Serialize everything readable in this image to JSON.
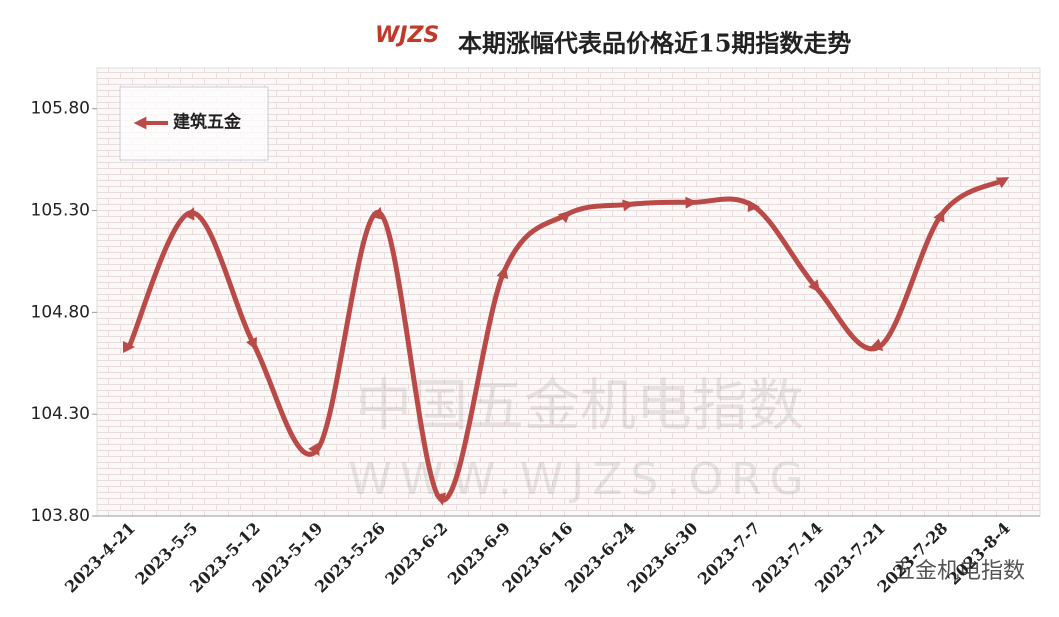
{
  "chart_data": {
    "type": "line",
    "title": "本期涨幅代表品价格近15期指数走势",
    "logo": "WJZS",
    "watermark": [
      "中国五金机电指数",
      "WWW.WJZS.ORG"
    ],
    "source": "五金机电指数",
    "categories": [
      "2023-4-21",
      "2023-5-5",
      "2023-5-12",
      "2023-5-19",
      "2023-5-26",
      "2023-6-2",
      "2023-6-9",
      "2023-6-16",
      "2023-6-24",
      "2023-6-30",
      "2023-7-7",
      "2023-7-14",
      "2023-7-21",
      "2023-7-28",
      "2023-8-4"
    ],
    "series": [
      {
        "name": "建筑五金",
        "color": "#b94a48",
        "values": [
          104.63,
          105.29,
          104.64,
          104.12,
          105.29,
          103.88,
          105.0,
          105.28,
          105.33,
          105.34,
          105.32,
          104.92,
          104.63,
          105.28,
          105.45
        ]
      }
    ],
    "ylim": [
      103.8,
      106.0
    ],
    "yticks": [
      {
        "value": 103.8,
        "label": "103.80"
      },
      {
        "value": 104.3,
        "label": "104.30"
      },
      {
        "value": 104.8,
        "label": "104.80"
      },
      {
        "value": 105.3,
        "label": "105.30"
      },
      {
        "value": 105.8,
        "label": "105.80"
      }
    ],
    "legend": "top-left"
  }
}
